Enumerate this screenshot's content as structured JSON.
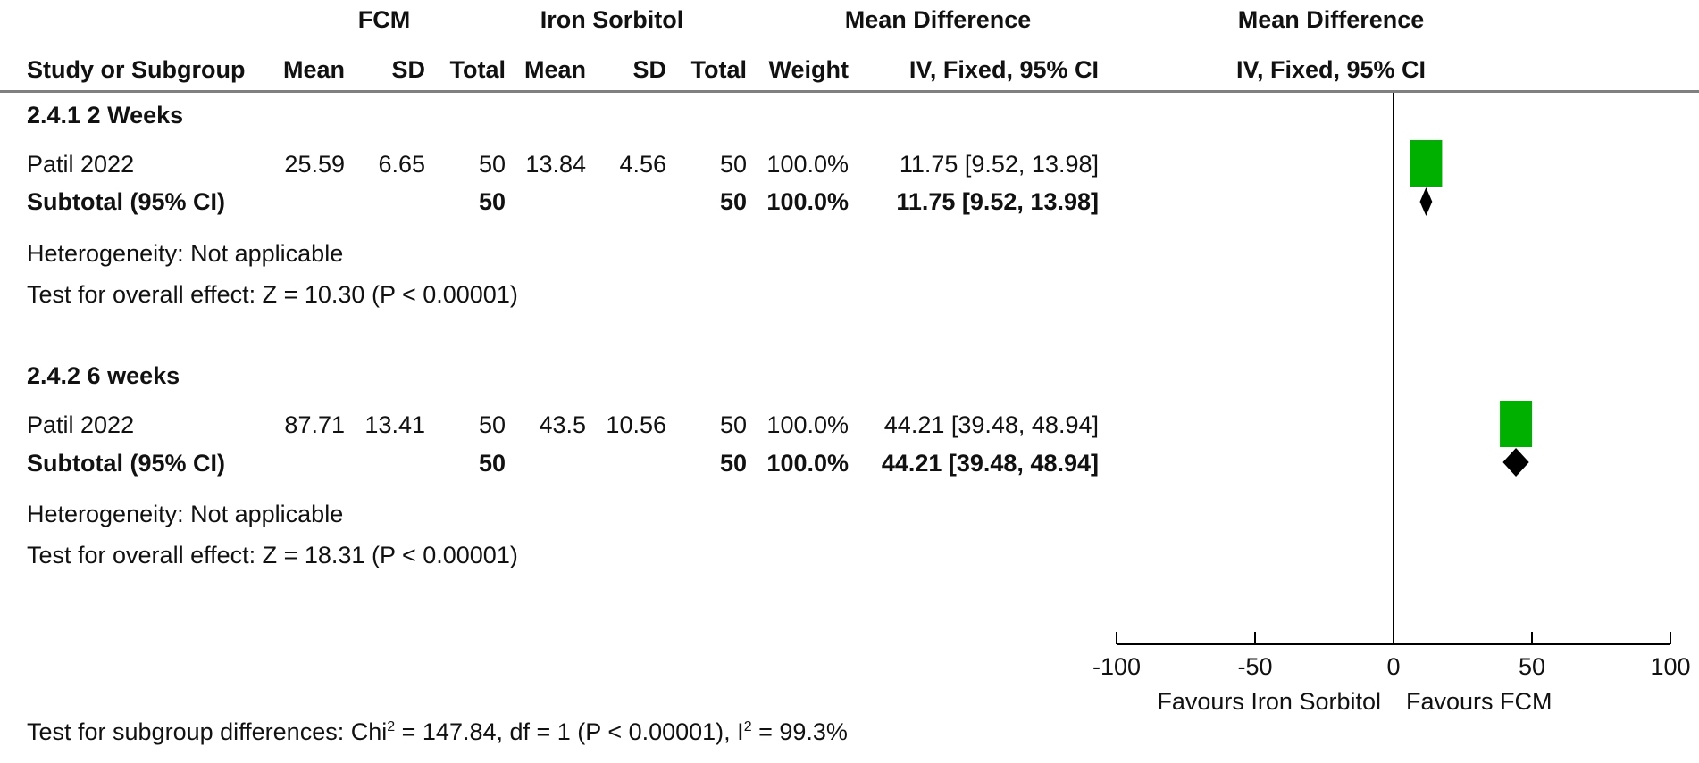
{
  "header": {
    "group1": "FCM",
    "group2": "Iron Sorbitol",
    "effect_title": "Mean Difference",
    "plot_title": "Mean Difference",
    "col_study": "Study or Subgroup",
    "col_mean1": "Mean",
    "col_sd1": "SD",
    "col_total1": "Total",
    "col_mean2": "Mean",
    "col_sd2": "SD",
    "col_total2": "Total",
    "col_weight": "Weight",
    "col_effect": "IV, Fixed, 95% CI",
    "plot_method": "IV, Fixed, 95% CI"
  },
  "subgroups": [
    {
      "title": "2.4.1 2 Weeks",
      "study": {
        "name": "Patil 2022",
        "mean1": "25.59",
        "sd1": "6.65",
        "total1": "50",
        "mean2": "13.84",
        "sd2": "4.56",
        "total2": "50",
        "weight": "100.0%",
        "ci": "11.75 [9.52, 13.98]"
      },
      "subtotal": {
        "label": "Subtotal (95% CI)",
        "total1": "50",
        "total2": "50",
        "weight": "100.0%",
        "ci": "11.75 [9.52, 13.98]"
      },
      "heterogeneity": "Heterogeneity: Not applicable",
      "overall": "Test for overall effect: Z = 10.30 (P < 0.00001)"
    },
    {
      "title": "2.4.2 6 weeks",
      "study": {
        "name": "Patil 2022",
        "mean1": "87.71",
        "sd1": "13.41",
        "total1": "50",
        "mean2": "43.5",
        "sd2": "10.56",
        "total2": "50",
        "weight": "100.0%",
        "ci": "44.21 [39.48, 48.94]"
      },
      "subtotal": {
        "label": "Subtotal (95% CI)",
        "total1": "50",
        "total2": "50",
        "weight": "100.0%",
        "ci": "44.21 [39.48, 48.94]"
      },
      "heterogeneity": "Heterogeneity: Not applicable",
      "overall": "Test for overall effect: Z = 18.31 (P < 0.00001)"
    }
  ],
  "subgroup_test": {
    "prefix": "Test for subgroup differences: Chi",
    "sup1": "2",
    "middle": " = 147.84, df = 1 (P < 0.00001), I",
    "sup2": "2",
    "suffix": " = 99.3%"
  },
  "colors": {
    "square": "#00b000",
    "diamond": "#000000",
    "axis": "#000000"
  },
  "chart_data": {
    "type": "forest",
    "xlim": [
      -100,
      100
    ],
    "ticks": [
      -100,
      -50,
      0,
      50,
      100
    ],
    "tick_labels": [
      "-100",
      "-50",
      "0",
      "50",
      "100"
    ],
    "favours_left": "Favours Iron Sorbitol",
    "favours_right": "Favours FCM",
    "studies": [
      {
        "subgroup": "2.4.1 2 Weeks",
        "name": "Patil 2022",
        "md": 11.75,
        "lower": 9.52,
        "upper": 13.98,
        "weight": 100.0
      },
      {
        "subgroup": "2.4.2 6 weeks",
        "name": "Patil 2022",
        "md": 44.21,
        "lower": 39.48,
        "upper": 48.94,
        "weight": 100.0
      }
    ],
    "subtotals": [
      {
        "subgroup": "2.4.1 2 Weeks",
        "md": 11.75,
        "lower": 9.52,
        "upper": 13.98
      },
      {
        "subgroup": "2.4.2 6 weeks",
        "md": 44.21,
        "lower": 39.48,
        "upper": 48.94
      }
    ]
  }
}
